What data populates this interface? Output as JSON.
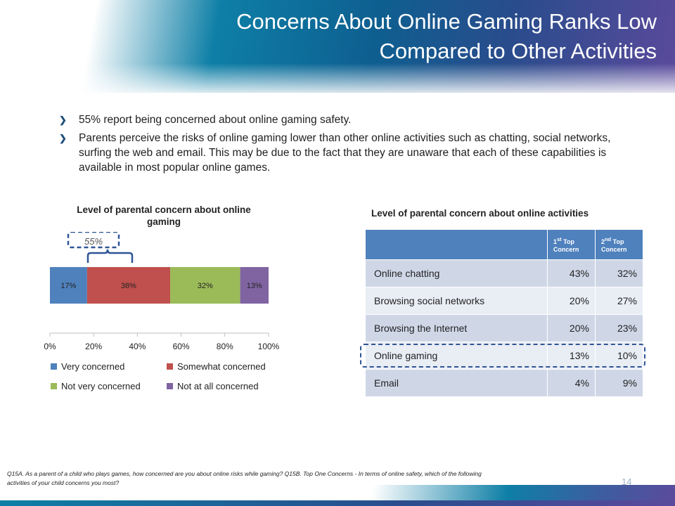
{
  "slide": {
    "title_line1": "Concerns About Online Gaming Ranks Low",
    "title_line2": "Compared to Other Activities",
    "bullets": [
      "55% report being concerned about online gaming safety.",
      "Parents perceive the risks of online gaming lower than other online activities such as chatting, social networks, surfing the web and email.  This may be due to the fact that they are unaware that each of these capabilities is available in most popular online games."
    ],
    "footnote": "Q15A. As a parent of a child who plays games, how concerned are you about online risks while gaming? Q15B. Top One Concerns - In terms of online safety, which of the following activities of your child concerns you most?",
    "page_number": "14"
  },
  "chart_data": {
    "type": "bar",
    "orientation": "horizontal-stacked",
    "title": "Level of parental concern about online gaming",
    "callout": "55%",
    "series": [
      {
        "name": "Very concerned",
        "values": [
          17
        ],
        "label": "17%",
        "color": "#4f81bd"
      },
      {
        "name": "Somewhat concerned",
        "values": [
          38
        ],
        "label": "38%",
        "color": "#c0504d"
      },
      {
        "name": "Not very concerned",
        "values": [
          32
        ],
        "label": "32%",
        "color": "#9bbb59"
      },
      {
        "name": "Not at all concerned",
        "values": [
          13
        ],
        "label": "13%",
        "color": "#8064a2"
      }
    ],
    "xlim": [
      0,
      100
    ],
    "ticks": [
      "0%",
      "20%",
      "40%",
      "60%",
      "80%",
      "100%"
    ],
    "legend_position": "bottom"
  },
  "concern_table": {
    "title": "Level of parental concern about online activities",
    "header": {
      "col1_num": "1",
      "col1_sup": "st",
      "col1_rest": " Top Concern",
      "col2_num": "2",
      "col2_sup": "nd",
      "col2_rest": " Top Concern"
    },
    "rows": [
      {
        "activity": "Online chatting",
        "first": "43%",
        "second": "32%"
      },
      {
        "activity": "Browsing social networks",
        "first": "20%",
        "second": "27%"
      },
      {
        "activity": "Browsing the Internet",
        "first": "20%",
        "second": "23%"
      },
      {
        "activity": "Online gaming",
        "first": "13%",
        "second": "10%"
      },
      {
        "activity": "Email",
        "first": "4%",
        "second": "9%"
      }
    ],
    "highlighted_row": "Online gaming"
  },
  "colors": {
    "accent_blue": "#4f81bd",
    "highlight_border": "#2f5597"
  }
}
